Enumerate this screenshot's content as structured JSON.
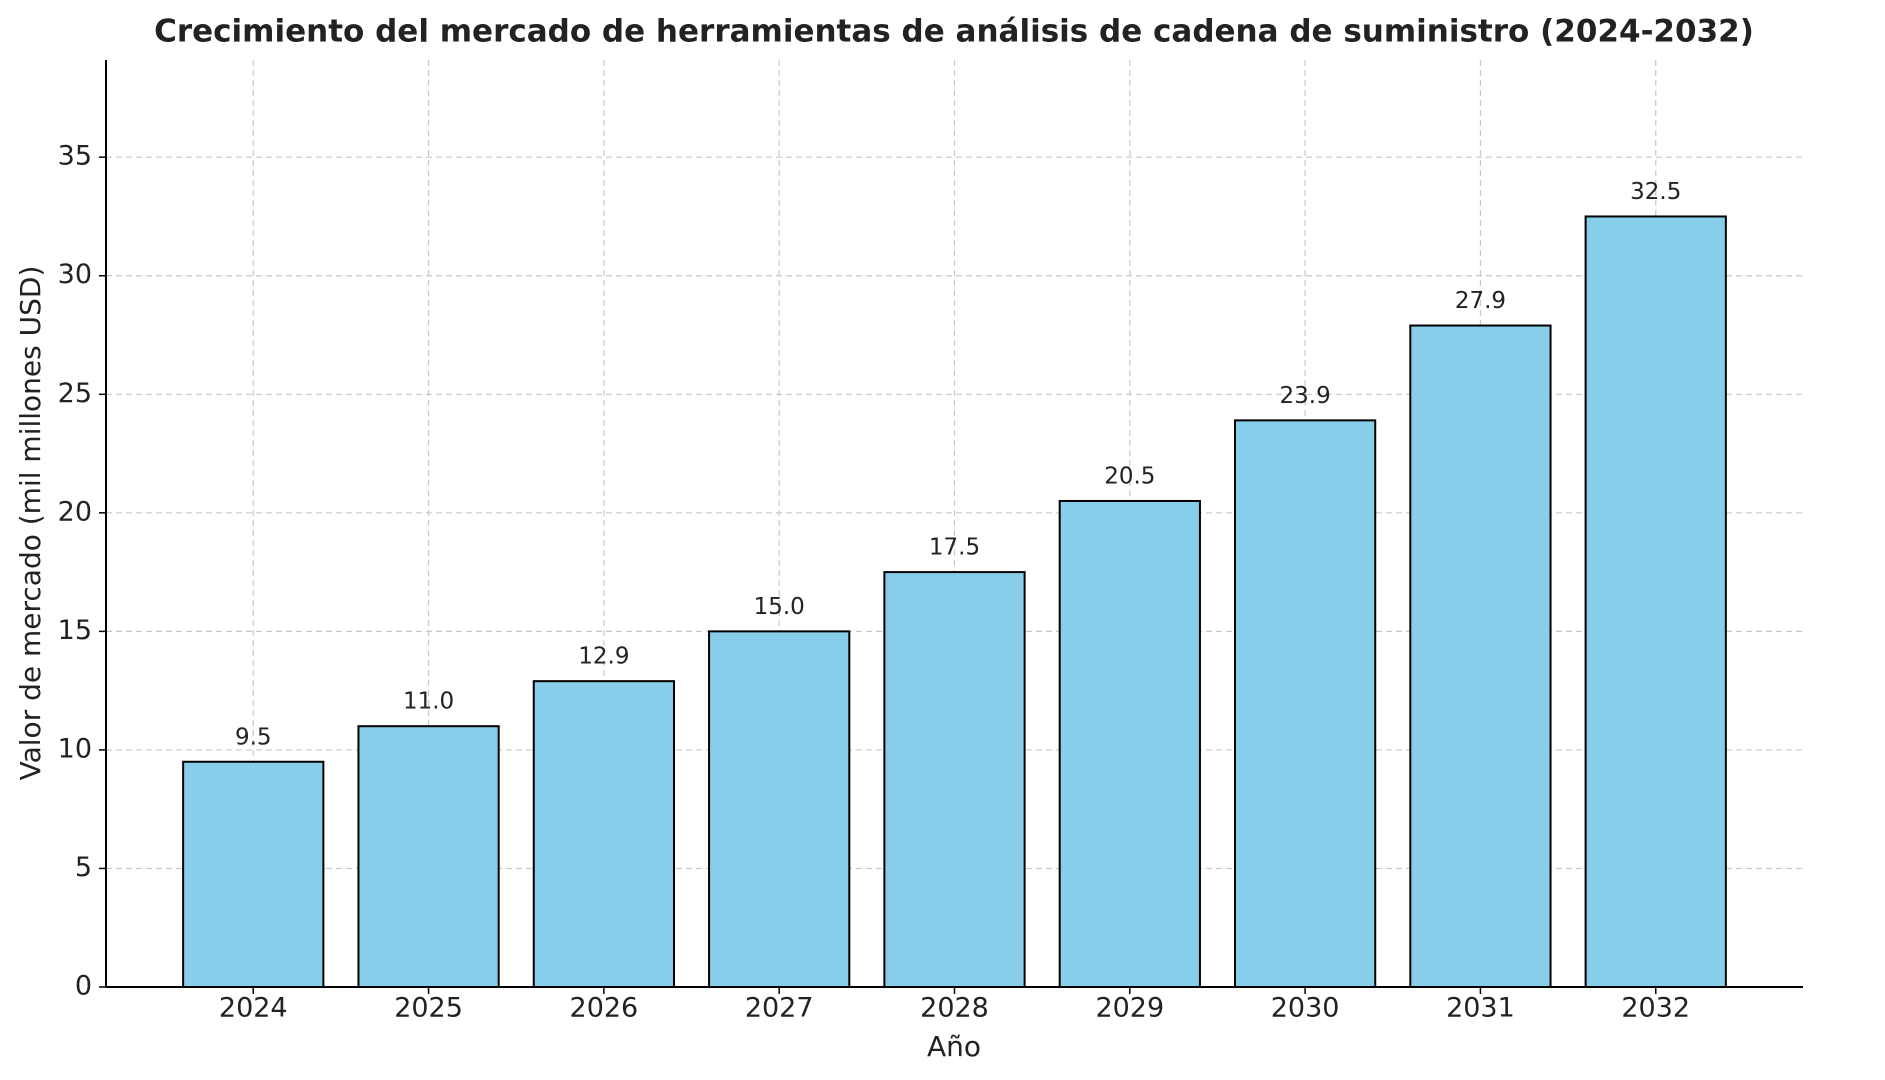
{
  "chart_data": {
    "type": "bar",
    "title": "Crecimiento del mercado de herramientas de análisis de cadena de suministro (2024-2032)",
    "xlabel": "Año",
    "ylabel": "Valor de mercado (mil millones USD)",
    "categories": [
      "2024",
      "2025",
      "2026",
      "2027",
      "2028",
      "2029",
      "2030",
      "2031",
      "2032"
    ],
    "values": [
      9.5,
      11.0,
      12.9,
      15.0,
      17.5,
      20.5,
      23.9,
      27.9,
      32.5
    ],
    "value_labels": [
      "9.5",
      "11.0",
      "12.9",
      "15.0",
      "17.5",
      "20.5",
      "23.9",
      "27.9",
      "32.5"
    ],
    "color": "#87ceeb",
    "edgecolor": "#000000",
    "ylim": [
      0,
      39.1
    ],
    "yticks": [
      0,
      5,
      10,
      15,
      20,
      25,
      30,
      35
    ],
    "grid": true
  }
}
